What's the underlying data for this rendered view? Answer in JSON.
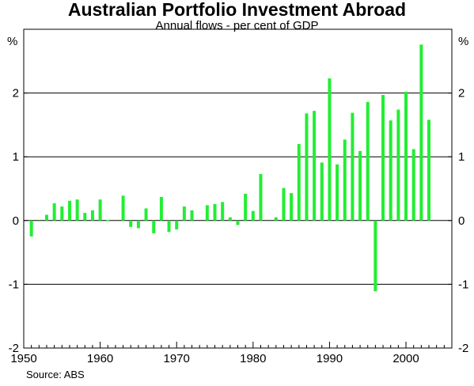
{
  "chart_data": {
    "type": "bar",
    "title": "Australian Portfolio Investment Abroad",
    "subtitle": "Annual flows - per cent of GDP",
    "ylabel_left": "%",
    "ylabel_right": "%",
    "source": "Source: ABS",
    "ylim": [
      -2,
      3
    ],
    "yticks": [
      -2,
      -1,
      0,
      1,
      2
    ],
    "ytick_labels": [
      "-2",
      "-1",
      "0",
      "1",
      "2"
    ],
    "xlim": [
      1950,
      2006
    ],
    "xticks": [
      1950,
      1960,
      1970,
      1980,
      1990,
      2000
    ],
    "xtick_labels": [
      "1950",
      "1960",
      "1970",
      "1980",
      "1990",
      "2000"
    ],
    "gridlines_y": [
      2,
      1,
      0,
      -1
    ],
    "grid": "horizontal",
    "bar_color": "#22ee33",
    "x": [
      1951,
      1952,
      1953,
      1954,
      1955,
      1956,
      1957,
      1958,
      1959,
      1960,
      1961,
      1963,
      1964,
      1965,
      1966,
      1967,
      1968,
      1969,
      1970,
      1971,
      1972,
      1974,
      1975,
      1976,
      1977,
      1978,
      1979,
      1980,
      1981,
      1983,
      1984,
      1985,
      1986,
      1987,
      1988,
      1989,
      1990,
      1991,
      1992,
      1993,
      1994,
      1995,
      1996,
      1997,
      1998,
      1999,
      2000,
      2001,
      2002,
      2003
    ],
    "values": [
      -0.25,
      -0.01,
      0.09,
      0.27,
      0.22,
      0.31,
      0.33,
      0.12,
      0.16,
      0.33,
      0.01,
      0.39,
      -0.1,
      -0.12,
      0.19,
      -0.2,
      0.37,
      -0.18,
      -0.14,
      0.22,
      0.16,
      0.24,
      0.26,
      0.29,
      0.05,
      -0.07,
      0.42,
      0.15,
      0.73,
      0.05,
      0.51,
      0.43,
      1.2,
      1.68,
      1.72,
      0.91,
      2.23,
      0.88,
      1.27,
      1.69,
      1.09,
      1.86,
      -1.11,
      1.97,
      1.57,
      1.74,
      2.02,
      1.12,
      2.76,
      1.58
    ]
  }
}
